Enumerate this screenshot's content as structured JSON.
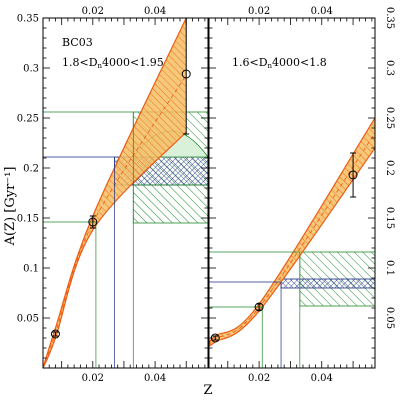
{
  "colors": {
    "band_fill": "#f4be62",
    "band_edge": "#ee5b12",
    "blue_hatch": "#1d2d87",
    "green_hatch": "#1f8a2a",
    "green_fill": "#d9f0d9",
    "axis": "#000000"
  },
  "chart_data": [
    {
      "type": "line",
      "panel": "left",
      "labels": [
        "BC03",
        "1.8<Dₙ₄000<1.95"
      ],
      "label_lines": [
        "BC03",
        "1.8<D",
        "n",
        "4000<1.95"
      ],
      "xlabel": "",
      "ylabel": "A(Z)  [Gyr⁻¹]",
      "xlim": [
        0.004,
        0.057
      ],
      "ylim": [
        0.0,
        0.35
      ],
      "x_ticks": [
        "0.02",
        "0.04"
      ],
      "y_ticks": [
        "0.05",
        "0.1",
        "0.15",
        "0.2",
        "0.25",
        "0.3",
        "0.35"
      ],
      "points": [
        {
          "x": 0.008,
          "y": 0.034,
          "err": 0.002
        },
        {
          "x": 0.02,
          "y": 0.146,
          "err": 0.006
        },
        {
          "x": 0.05,
          "y": 0.294,
          "err": 0.06
        }
      ],
      "band_low": [
        [
          0.004,
          0.0
        ],
        [
          0.008,
          0.03
        ],
        [
          0.02,
          0.138
        ],
        [
          0.05,
          0.236
        ]
      ],
      "band_high": [
        [
          0.004,
          0.0
        ],
        [
          0.008,
          0.04
        ],
        [
          0.02,
          0.152
        ],
        [
          0.05,
          0.35
        ]
      ],
      "boxes": [
        {
          "color": "green",
          "x": [
            0.033,
            0.057
          ],
          "y": [
            0.183,
            0.256
          ],
          "pattern": "orange-hatch"
        },
        {
          "color": "blue",
          "x": [
            0.027,
            0.057
          ],
          "y": [
            0.183,
            0.211
          ],
          "pattern": "cross"
        },
        {
          "color": "green",
          "x": [
            0.033,
            0.057
          ],
          "y": [
            0.145,
            0.183
          ],
          "pattern": "diag"
        }
      ],
      "dome": {
        "x": [
          0.033,
          0.057
        ],
        "y_base": 0.211,
        "y_top": 0.237
      },
      "guide_lines": [
        {
          "color": "green",
          "x": 0.021,
          "y_top": 0.146
        },
        {
          "color": "blue",
          "x": 0.027,
          "y_top": 0.211
        },
        {
          "color": "green",
          "x": 0.033,
          "y_top": 0.256
        }
      ]
    },
    {
      "type": "line",
      "panel": "right",
      "labels": [
        "1.6<Dₙ₄000<1.8"
      ],
      "label_lines": [
        "1.6<D",
        "n",
        "4000<1.8"
      ],
      "xlabel": "Z",
      "ylabel": "",
      "xlim": [
        0.004,
        0.057
      ],
      "ylim": [
        0.0,
        0.35
      ],
      "x_ticks": [
        "0.02",
        "0.04"
      ],
      "y_ticks": [
        "0.05",
        "0.1",
        "0.15",
        "0.2",
        "0.25",
        "0.3",
        "0.35"
      ],
      "points": [
        {
          "x": 0.006,
          "y": 0.03,
          "err": 0.002
        },
        {
          "x": 0.02,
          "y": 0.061,
          "err": 0.003
        },
        {
          "x": 0.05,
          "y": 0.193,
          "err": 0.022
        }
      ],
      "band_low": [
        [
          0.004,
          0.022
        ],
        [
          0.006,
          0.026
        ],
        [
          0.02,
          0.057
        ],
        [
          0.057,
          0.22
        ]
      ],
      "band_high": [
        [
          0.004,
          0.024
        ],
        [
          0.006,
          0.032
        ],
        [
          0.02,
          0.064
        ],
        [
          0.057,
          0.25
        ]
      ],
      "boxes": [
        {
          "color": "green",
          "x": [
            0.033,
            0.057
          ],
          "y": [
            0.062,
            0.116
          ],
          "pattern": "diag"
        },
        {
          "color": "blue",
          "x": [
            0.027,
            0.057
          ],
          "y": [
            0.08,
            0.089
          ],
          "pattern": "cross"
        }
      ],
      "guide_lines": [
        {
          "color": "green",
          "x": 0.021,
          "y_top": 0.061
        },
        {
          "color": "blue",
          "x": 0.027,
          "y_top": 0.086
        },
        {
          "color": "green",
          "x": 0.033,
          "y_top": 0.116
        }
      ]
    }
  ]
}
